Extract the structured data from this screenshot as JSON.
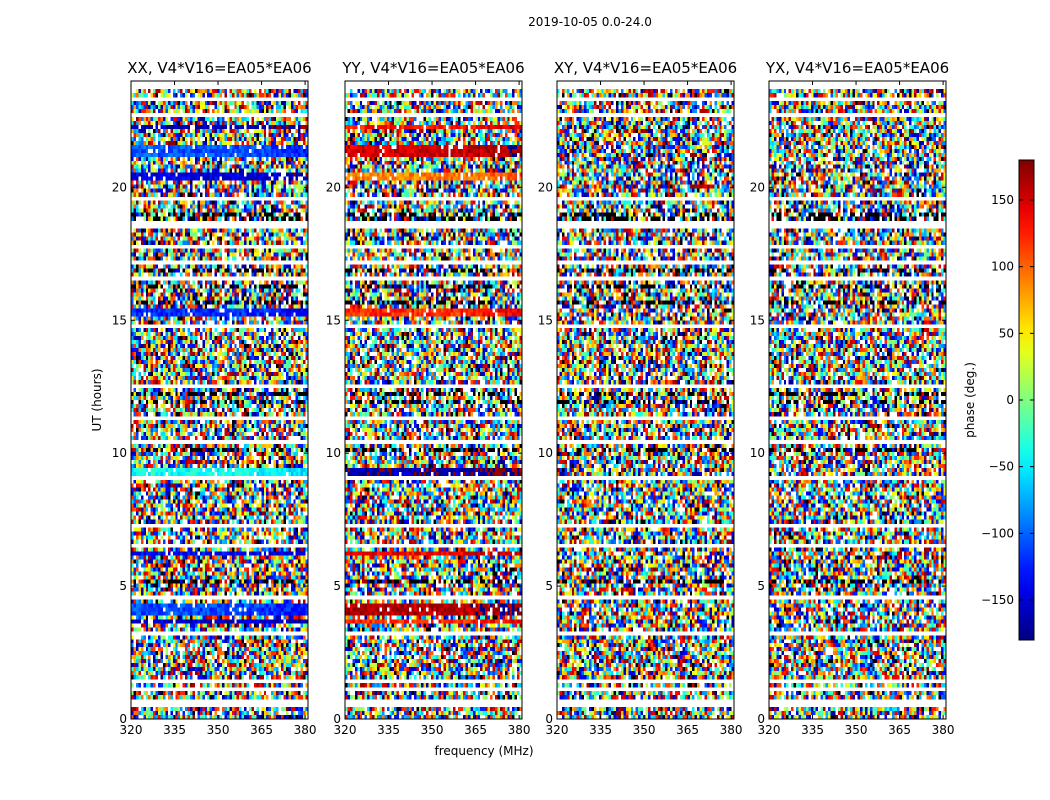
{
  "figure": {
    "suptitle": "2019-10-05 0.0-24.0"
  },
  "chart_data": {
    "type": "heatmap",
    "xlabel": "frequency (MHz)",
    "ylabel": "UT (hours)",
    "xlim": [
      320,
      381
    ],
    "ylim": [
      0,
      24
    ],
    "x_ticks": [
      320,
      335,
      350,
      365,
      380
    ],
    "y_ticks": [
      0,
      5,
      10,
      15,
      20
    ],
    "colorbar": {
      "label": "phase (deg.)",
      "range": [
        -180,
        180
      ],
      "ticks": [
        150,
        100,
        50,
        0,
        -50,
        -100,
        -150
      ],
      "tick_labels": [
        "150",
        "100",
        "50",
        "0",
        "−50",
        "−100",
        "−150"
      ],
      "colormap": "jet"
    },
    "panels": [
      {
        "title": "XX, V4*V16=EA05*EA06",
        "coherent_bands": [
          {
            "t0": 3.9,
            "t1": 4.3,
            "phase": -110
          },
          {
            "t0": 3.55,
            "t1": 3.8,
            "phase": -150
          },
          {
            "t0": 6.1,
            "t1": 6.3,
            "phase": -135
          },
          {
            "t0": 9.2,
            "t1": 9.5,
            "phase": -40
          },
          {
            "t0": 15.2,
            "t1": 15.4,
            "phase": -120
          },
          {
            "t0": 20.2,
            "t1": 20.6,
            "phase": -145
          },
          {
            "t0": 21.2,
            "t1": 21.6,
            "phase": -105
          },
          {
            "t0": 22.2,
            "t1": 22.4,
            "phase": -160
          }
        ]
      },
      {
        "title": "YY, V4*V16=EA05*EA06",
        "coherent_bands": [
          {
            "t0": 3.9,
            "t1": 4.3,
            "phase": 160
          },
          {
            "t0": 3.55,
            "t1": 3.8,
            "phase": 120
          },
          {
            "t0": 6.1,
            "t1": 6.3,
            "phase": 140
          },
          {
            "t0": 9.2,
            "t1": 9.5,
            "phase": -165
          },
          {
            "t0": 15.2,
            "t1": 15.4,
            "phase": 120
          },
          {
            "t0": 20.2,
            "t1": 20.6,
            "phase": 90
          },
          {
            "t0": 21.2,
            "t1": 21.6,
            "phase": 150
          },
          {
            "t0": 22.2,
            "t1": 22.4,
            "phase": 130
          }
        ]
      },
      {
        "title": "XY, V4*V16=EA05*EA06",
        "coherent_bands": []
      },
      {
        "title": "YX, V4*V16=EA05*EA06",
        "coherent_bands": []
      }
    ],
    "flagged_rows": [
      [
        0.5,
        0.7
      ],
      [
        1.0,
        1.2
      ],
      [
        1.4,
        1.5
      ],
      [
        2.5,
        2.6
      ],
      [
        3.2,
        3.3
      ],
      [
        4.55,
        4.65
      ],
      [
        5.5,
        5.6
      ],
      [
        6.4,
        6.6
      ],
      [
        7.2,
        7.3
      ],
      [
        8.2,
        8.3
      ],
      [
        9.0,
        9.1
      ],
      [
        10.4,
        10.5
      ],
      [
        11.3,
        11.4
      ],
      [
        12.5,
        12.6
      ],
      [
        13.9,
        14.0
      ],
      [
        14.7,
        14.8
      ],
      [
        16.5,
        16.6
      ],
      [
        17.1,
        17.2
      ],
      [
        17.7,
        17.8
      ],
      [
        18.4,
        18.7
      ],
      [
        19.5,
        19.6
      ],
      [
        22.7,
        22.8
      ],
      [
        23.3,
        23.4
      ],
      [
        23.75,
        24.0
      ]
    ],
    "dark_rows": [
      [
        1.3,
        1.4
      ],
      [
        5.1,
        5.2
      ],
      [
        7.6,
        7.7
      ],
      [
        10.1,
        10.2
      ],
      [
        11.8,
        12.0
      ],
      [
        12.2,
        12.3
      ],
      [
        15.6,
        15.7
      ],
      [
        16.2,
        16.3
      ],
      [
        16.8,
        16.9
      ],
      [
        18.8,
        19.1
      ],
      [
        23.5,
        23.6
      ]
    ]
  }
}
